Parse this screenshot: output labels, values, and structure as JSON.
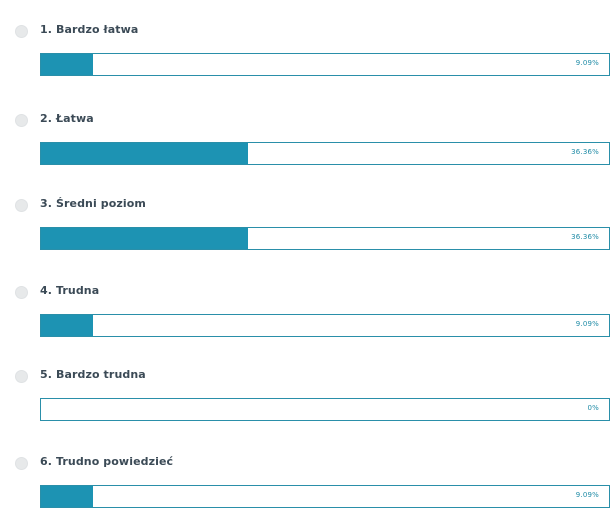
{
  "poll": {
    "options": [
      {
        "label": "1. Bardzo łatwa",
        "percent_text": "9.09%",
        "percent": 9.09
      },
      {
        "label": "2. Łatwa",
        "percent_text": "36.36%",
        "percent": 36.36
      },
      {
        "label": "3. Średni poziom",
        "percent_text": "36.36%",
        "percent": 36.36
      },
      {
        "label": "4. Trudna",
        "percent_text": "9.09%",
        "percent": 9.09
      },
      {
        "label": "5. Bardzo trudna",
        "percent_text": "0%",
        "percent": 0
      },
      {
        "label": "6. Trudno powiedzieć",
        "percent_text": "9.09%",
        "percent": 9.09
      }
    ]
  },
  "colors": {
    "bar_fill": "#1d93b3",
    "bar_border": "#2a8fa9",
    "label_text": "#3b4a56",
    "percent_text": "#1f8ba6",
    "radio": "#e7e9ea"
  }
}
